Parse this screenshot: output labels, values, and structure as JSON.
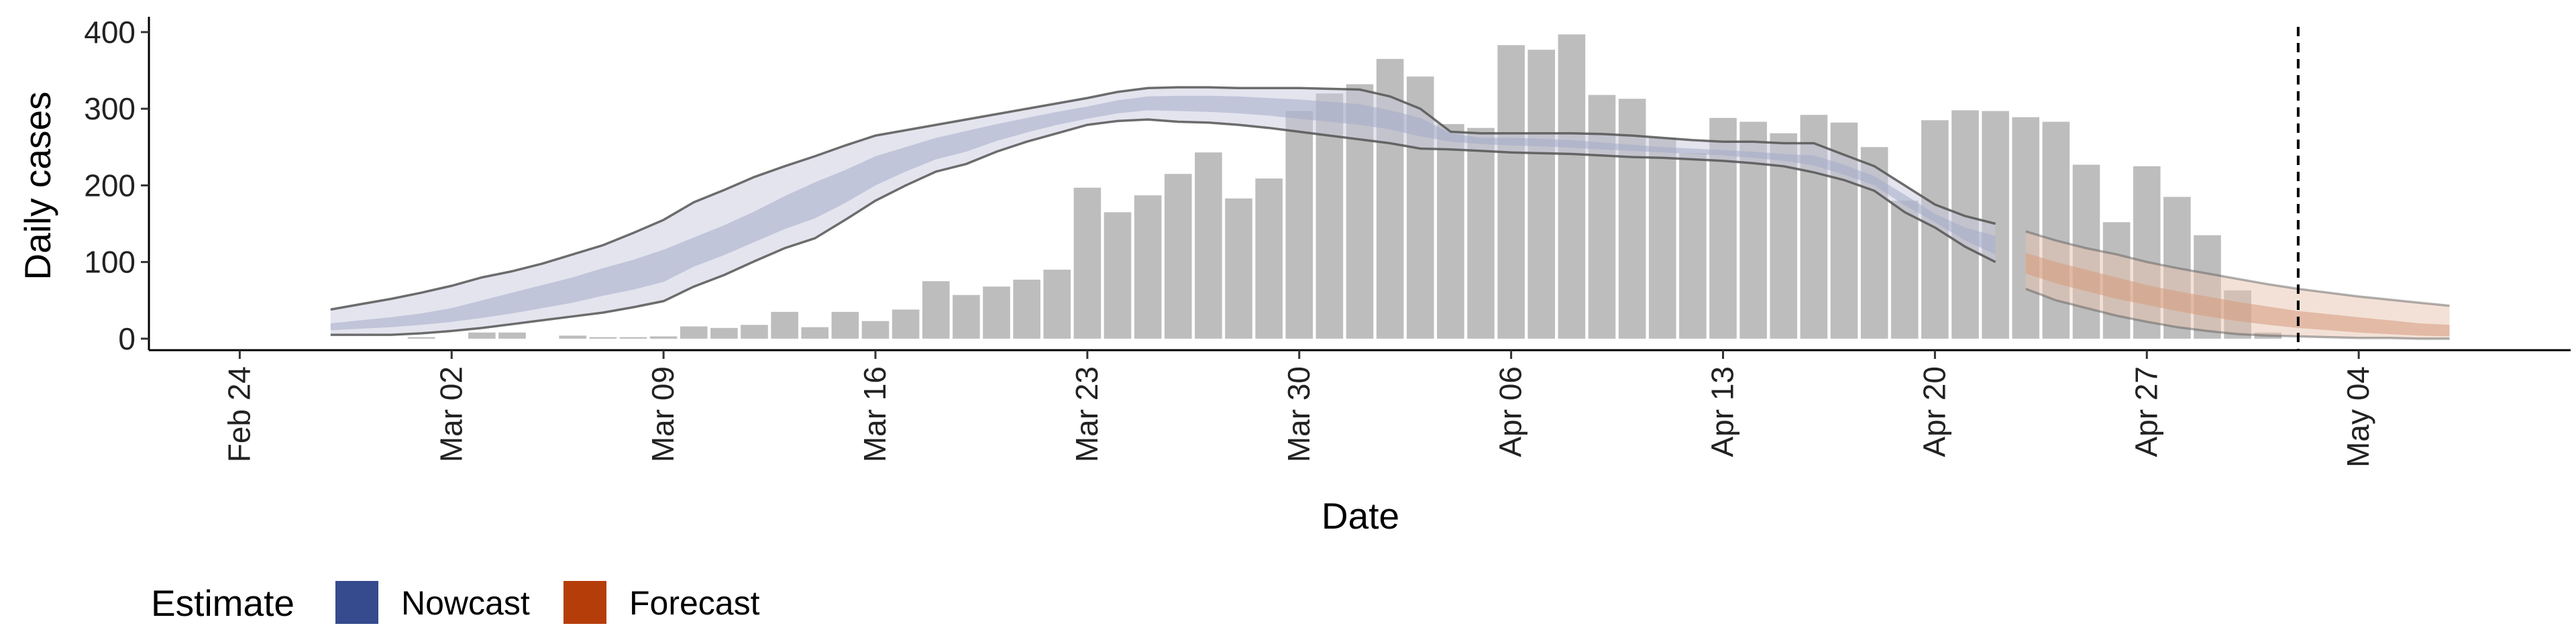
{
  "chart_data": {
    "type": "bar",
    "xlabel": "Date",
    "ylabel": "Daily cases",
    "ylim": [
      -15,
      420
    ],
    "y_ticks": [
      0,
      100,
      200,
      300,
      400
    ],
    "x_range": [
      "2020-02-21",
      "2020-05-11"
    ],
    "x_ticks": [
      {
        "date": "2020-02-24",
        "label": "Feb 24"
      },
      {
        "date": "2020-03-02",
        "label": "Mar 02"
      },
      {
        "date": "2020-03-09",
        "label": "Mar 09"
      },
      {
        "date": "2020-03-16",
        "label": "Mar 16"
      },
      {
        "date": "2020-03-23",
        "label": "Mar 23"
      },
      {
        "date": "2020-03-30",
        "label": "Mar 30"
      },
      {
        "date": "2020-04-06",
        "label": "Apr 06"
      },
      {
        "date": "2020-04-13",
        "label": "Apr 13"
      },
      {
        "date": "2020-04-20",
        "label": "Apr 20"
      },
      {
        "date": "2020-04-27",
        "label": "Apr 27"
      },
      {
        "date": "2020-05-04",
        "label": "May 04"
      }
    ],
    "bars": {
      "start_date": "2020-02-28",
      "values": [
        0,
        0,
        2,
        0,
        8,
        8,
        0,
        4,
        2,
        2,
        3,
        16,
        14,
        18,
        35,
        15,
        35,
        23,
        38,
        75,
        57,
        68,
        77,
        90,
        197,
        165,
        187,
        215,
        243,
        183,
        209,
        297,
        320,
        332,
        365,
        342,
        280,
        275,
        383,
        377,
        397,
        318,
        313,
        262,
        242,
        288,
        283,
        268,
        292,
        282,
        250,
        180,
        285,
        298,
        297,
        289,
        283,
        227,
        152,
        225,
        185,
        135,
        63,
        8
      ],
      "color": "#bdbdbd"
    },
    "nowcast": {
      "start_date": "2020-02-27",
      "outer_upper": [
        38,
        45,
        52,
        60,
        69,
        80,
        88,
        98,
        110,
        122,
        138,
        155,
        178,
        194,
        211,
        225,
        238,
        252,
        265,
        272,
        279,
        286,
        293,
        300,
        307,
        314,
        322,
        327,
        328,
        328,
        327,
        327,
        327,
        326,
        325,
        316,
        300,
        270,
        268,
        268,
        268,
        268,
        267,
        265,
        262,
        259,
        257,
        257,
        255,
        255,
        240,
        225,
        200,
        175,
        160,
        150
      ],
      "outer_lower": [
        5,
        5,
        5,
        7,
        10,
        14,
        19,
        24,
        29,
        34,
        41,
        49,
        68,
        83,
        101,
        118,
        131,
        155,
        180,
        200,
        218,
        228,
        244,
        257,
        268,
        279,
        284,
        286,
        283,
        282,
        279,
        275,
        270,
        265,
        260,
        255,
        248,
        247,
        245,
        243,
        242,
        241,
        239,
        237,
        236,
        234,
        232,
        229,
        225,
        217,
        207,
        193,
        165,
        145,
        120,
        100
      ],
      "inner_upper": [
        20,
        24,
        28,
        33,
        40,
        50,
        60,
        70,
        80,
        92,
        103,
        116,
        132,
        148,
        166,
        186,
        204,
        220,
        238,
        250,
        262,
        271,
        280,
        288,
        296,
        303,
        311,
        316,
        317,
        317,
        316,
        314,
        312,
        309,
        306,
        298,
        288,
        268,
        262,
        262,
        261,
        259,
        256,
        253,
        250,
        248,
        246,
        244,
        241,
        239,
        227,
        212,
        188,
        163,
        145,
        134
      ],
      "inner_lower": [
        11,
        13,
        15,
        18,
        22,
        27,
        33,
        40,
        47,
        56,
        64,
        74,
        94,
        109,
        126,
        143,
        157,
        177,
        200,
        218,
        234,
        244,
        258,
        269,
        279,
        287,
        294,
        298,
        297,
        296,
        294,
        291,
        287,
        283,
        279,
        273,
        264,
        257,
        254,
        252,
        251,
        249,
        247,
        245,
        243,
        241,
        239,
        236,
        232,
        226,
        214,
        200,
        174,
        152,
        128,
        110
      ]
    },
    "forecast": {
      "start_date": "2020-04-23",
      "outer_upper": [
        140,
        128,
        118,
        110,
        100,
        92,
        85,
        78,
        71,
        65,
        60,
        55,
        51,
        47,
        43
      ],
      "outer_lower": [
        65,
        50,
        40,
        30,
        22,
        15,
        10,
        6,
        4,
        3,
        2,
        1,
        1,
        0,
        0
      ],
      "inner_upper": [
        112,
        100,
        90,
        80,
        70,
        62,
        55,
        48,
        42,
        36,
        32,
        28,
        24,
        20,
        18
      ],
      "inner_lower": [
        85,
        72,
        62,
        52,
        44,
        36,
        29,
        23,
        18,
        14,
        11,
        8,
        6,
        4,
        3
      ]
    },
    "vline_date": "2020-05-02",
    "legend": {
      "title": "Estimate",
      "position": "bottom-left",
      "items": [
        {
          "label": "Nowcast",
          "color": "#354B8D"
        },
        {
          "label": "Forecast",
          "color": "#B53D0A"
        }
      ]
    },
    "colors": {
      "nowcast_outer": "#c9cadd",
      "nowcast_inner": "#a4acca",
      "forecast_outer": "#e7c3b0",
      "forecast_inner": "#d69a7b",
      "band_edge": "#555555",
      "vline": "#000000"
    },
    "grid": false
  }
}
